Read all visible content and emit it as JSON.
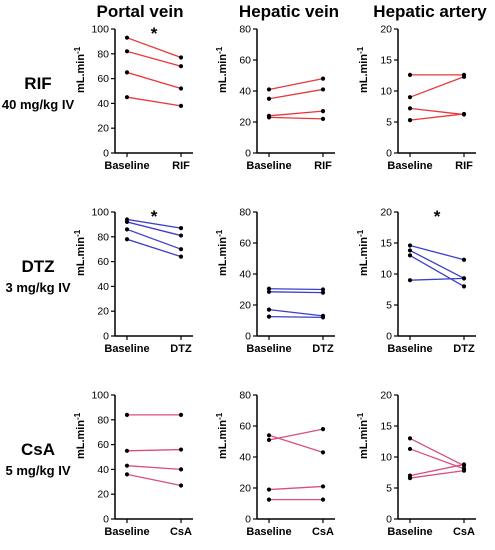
{
  "column_titles": [
    "Portal vein",
    "Hepatic vein",
    "Hepatic artery"
  ],
  "row_labels": [
    {
      "drug": "RIF",
      "dose": "40 mg/kg IV"
    },
    {
      "drug": "DTZ",
      "dose": "3 mg/kg IV"
    },
    {
      "drug": "CsA",
      "dose": "5 mg/kg IV"
    }
  ],
  "y_unit_label": "mL.min",
  "y_unit_superscript": "-1",
  "colors": {
    "RIF": "#e8373a",
    "DTZ": "#3b3fc9",
    "CsA": "#d94f7d",
    "points": "#000000"
  },
  "chart_data": [
    {
      "type": "line",
      "panel": "RIF - Portal vein",
      "categories": [
        "Baseline",
        "RIF"
      ],
      "ylim": [
        0,
        100
      ],
      "yticks": [
        0,
        20,
        40,
        60,
        80,
        100
      ],
      "significance": "*",
      "series": [
        {
          "values": [
            93,
            77
          ]
        },
        {
          "values": [
            82,
            70
          ]
        },
        {
          "values": [
            65,
            52
          ]
        },
        {
          "values": [
            45,
            38
          ]
        }
      ]
    },
    {
      "type": "line",
      "panel": "RIF - Hepatic vein",
      "categories": [
        "Baseline",
        "RIF"
      ],
      "ylim": [
        0,
        80
      ],
      "yticks": [
        0,
        20,
        40,
        60,
        80
      ],
      "significance": "",
      "series": [
        {
          "values": [
            41,
            48
          ]
        },
        {
          "values": [
            35,
            41
          ]
        },
        {
          "values": [
            24,
            27
          ]
        },
        {
          "values": [
            23,
            22
          ]
        }
      ]
    },
    {
      "type": "line",
      "panel": "RIF - Hepatic artery",
      "categories": [
        "Baseline",
        "RIF"
      ],
      "ylim": [
        0,
        20
      ],
      "yticks": [
        0,
        5,
        10,
        15,
        20
      ],
      "significance": "",
      "series": [
        {
          "values": [
            12.6,
            12.6
          ]
        },
        {
          "values": [
            9,
            12.3
          ]
        },
        {
          "values": [
            7.2,
            6.2
          ]
        },
        {
          "values": [
            5.3,
            6.3
          ]
        }
      ]
    },
    {
      "type": "line",
      "panel": "DTZ - Portal vein",
      "categories": [
        "Baseline",
        "DTZ"
      ],
      "ylim": [
        0,
        100
      ],
      "yticks": [
        0,
        20,
        40,
        60,
        80,
        100
      ],
      "significance": "*",
      "series": [
        {
          "values": [
            94,
            87
          ]
        },
        {
          "values": [
            92,
            81
          ]
        },
        {
          "values": [
            86,
            70
          ]
        },
        {
          "values": [
            78,
            64
          ]
        }
      ]
    },
    {
      "type": "line",
      "panel": "DTZ - Hepatic vein",
      "categories": [
        "Baseline",
        "DTZ"
      ],
      "ylim": [
        0,
        80
      ],
      "yticks": [
        0,
        20,
        40,
        60,
        80
      ],
      "significance": "",
      "series": [
        {
          "values": [
            30.5,
            30
          ]
        },
        {
          "values": [
            28.5,
            28
          ]
        },
        {
          "values": [
            17,
            13
          ]
        },
        {
          "values": [
            12.5,
            12
          ]
        }
      ]
    },
    {
      "type": "line",
      "panel": "DTZ - Hepatic artery",
      "categories": [
        "Baseline",
        "DTZ"
      ],
      "ylim": [
        0,
        20
      ],
      "yticks": [
        0,
        5,
        10,
        15,
        20
      ],
      "significance": "*",
      "series": [
        {
          "values": [
            14.6,
            12.3
          ]
        },
        {
          "values": [
            13.8,
            9.3
          ]
        },
        {
          "values": [
            13,
            8
          ]
        },
        {
          "values": [
            9,
            9.3
          ]
        }
      ]
    },
    {
      "type": "line",
      "panel": "CsA - Portal vein",
      "categories": [
        "Baseline",
        "CsA"
      ],
      "ylim": [
        0,
        100
      ],
      "yticks": [
        0,
        20,
        40,
        60,
        80,
        100
      ],
      "significance": "",
      "series": [
        {
          "values": [
            84,
            84
          ]
        },
        {
          "values": [
            55,
            56
          ]
        },
        {
          "values": [
            43,
            40
          ]
        },
        {
          "values": [
            36,
            27
          ]
        }
      ]
    },
    {
      "type": "line",
      "panel": "CsA - Hepatic vein",
      "categories": [
        "Baseline",
        "CsA"
      ],
      "ylim": [
        0,
        80
      ],
      "yticks": [
        0,
        20,
        40,
        60,
        80
      ],
      "significance": "",
      "series": [
        {
          "values": [
            54,
            43
          ]
        },
        {
          "values": [
            51,
            58
          ]
        },
        {
          "values": [
            19,
            21
          ]
        },
        {
          "values": [
            12.5,
            12.5
          ]
        }
      ]
    },
    {
      "type": "line",
      "panel": "CsA - Hepatic artery",
      "categories": [
        "Baseline",
        "CsA"
      ],
      "ylim": [
        0,
        20
      ],
      "yticks": [
        0,
        5,
        10,
        15,
        20
      ],
      "significance": "",
      "series": [
        {
          "values": [
            13,
            8.6
          ]
        },
        {
          "values": [
            11.3,
            8.1
          ]
        },
        {
          "values": [
            7,
            8.8
          ]
        },
        {
          "values": [
            6.6,
            7.8
          ]
        }
      ]
    }
  ]
}
